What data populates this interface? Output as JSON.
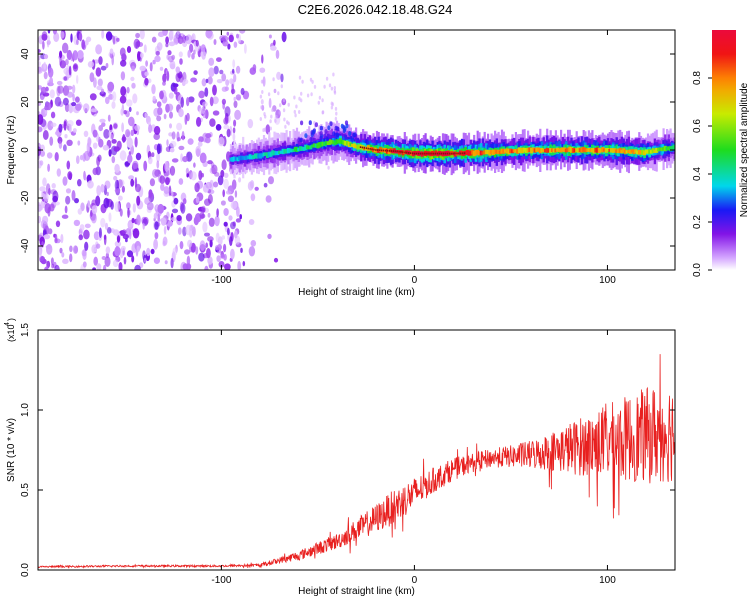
{
  "title": "C2E6.2026.042.18.48.G24",
  "chart_data": [
    {
      "type": "heatmap",
      "title": "C2E6.2026.042.18.48.G24",
      "xlabel": "Height of straight line (km)",
      "ylabel": "Frequency (Hz)",
      "xlim": [
        -195,
        135
      ],
      "ylim": [
        -50,
        50
      ],
      "x_ticks": [
        -100,
        0,
        100
      ],
      "x_tick_labels": [
        "-100",
        "0",
        "100"
      ],
      "y_ticks": [
        -40,
        -20,
        0,
        20,
        40
      ],
      "y_tick_labels": [
        "-40",
        "-20",
        "0",
        "20",
        "40"
      ],
      "noise_region_x": [
        -195,
        -75
      ],
      "ridge": {
        "description": "high-amplitude line near 0 Hz",
        "x": [
          -95,
          -85,
          -70,
          -55,
          -45,
          -38,
          -30,
          -20,
          -10,
          0,
          10,
          20,
          40,
          60,
          80,
          100,
          120,
          130,
          135
        ],
        "y": [
          -4,
          -3,
          -1,
          1,
          3,
          3.5,
          1.5,
          0,
          -0.5,
          -1.5,
          -1.5,
          -1.5,
          -1,
          0,
          0,
          0,
          -1,
          0.5,
          1
        ],
        "amplitude": [
          0.3,
          0.35,
          0.4,
          0.45,
          0.5,
          0.55,
          0.65,
          0.85,
          0.9,
          0.95,
          1.0,
          0.95,
          0.8,
          0.75,
          0.8,
          0.78,
          0.7,
          0.55,
          0.5
        ]
      },
      "colorbar": {
        "label": "Normalized spectral amplitude",
        "range": [
          0,
          1
        ],
        "ticks": [
          0.0,
          0.2,
          0.4,
          0.6,
          0.8
        ],
        "tick_labels": [
          "0.0",
          "0.2",
          "0.4",
          "0.6",
          "0.8"
        ]
      }
    },
    {
      "type": "line",
      "xlabel": "Height of straight line (km)",
      "ylabel": "SNR (10 * v/v)",
      "y_multiplier": "(x10",
      "y_multiplier_exp": "4",
      "y_multiplier_close": ")",
      "xlim": [
        -195,
        135
      ],
      "ylim": [
        0,
        15000
      ],
      "x_ticks": [
        -100,
        0,
        100
      ],
      "x_tick_labels": [
        "-100",
        "0",
        "100"
      ],
      "y_ticks": [
        0,
        5000,
        10000,
        15000
      ],
      "y_tick_labels": [
        "0.0",
        "0.5",
        "1.0",
        "1.5"
      ],
      "series": [
        {
          "name": "SNR",
          "color": "#e8201f",
          "x": [
            -195,
            -150,
            -100,
            -80,
            -60,
            -40,
            -30,
            -20,
            -10,
            0,
            10,
            20,
            30,
            40,
            50,
            60,
            70,
            80,
            90,
            100,
            110,
            120,
            130,
            135
          ],
          "y": [
            200,
            250,
            250,
            300,
            900,
            1800,
            2500,
            3200,
            4000,
            4800,
            5600,
            6300,
            6700,
            7000,
            7100,
            7200,
            7400,
            7600,
            7800,
            8000,
            8200,
            8400,
            8600,
            8700
          ],
          "noise_amplitude": [
            50,
            60,
            60,
            100,
            300,
            500,
            700,
            900,
            1100,
            1000,
            800,
            700,
            600,
            600,
            700,
            900,
            1200,
            1600,
            2000,
            2400,
            2700,
            3000,
            3200,
            3200
          ]
        }
      ]
    }
  ],
  "colors": {
    "line": "#e8201f",
    "axis": "#000000"
  }
}
